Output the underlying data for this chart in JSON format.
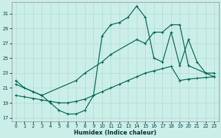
{
  "xlabel": "Humidex (Indice chaleur)",
  "bg_color": "#cceee8",
  "grid_color": "#aaddcc",
  "line_color": "#006655",
  "xlim": [
    -0.5,
    23.5
  ],
  "ylim": [
    16.5,
    32.5
  ],
  "yticks": [
    17,
    19,
    21,
    23,
    25,
    27,
    29,
    31
  ],
  "xticks": [
    0,
    1,
    2,
    3,
    4,
    5,
    6,
    7,
    8,
    9,
    10,
    11,
    12,
    13,
    14,
    15,
    16,
    17,
    18,
    19,
    20,
    21,
    22,
    23
  ],
  "line1_x": [
    0,
    1,
    2,
    3,
    4,
    5,
    6,
    7,
    8,
    9,
    10,
    11,
    12,
    13,
    14,
    15,
    16,
    17,
    18,
    19,
    20,
    21,
    22,
    23
  ],
  "line1_y": [
    22.0,
    21.0,
    20.5,
    20.0,
    19.0,
    18.0,
    17.5,
    17.5,
    18.0,
    20.0,
    28.0,
    29.5,
    29.8,
    30.5,
    32.0,
    30.5,
    25.0,
    24.5,
    28.5,
    24.0,
    27.5,
    24.5,
    23.0,
    23.0
  ],
  "line2_x": [
    0,
    1,
    2,
    3,
    4,
    5,
    6,
    7,
    8,
    9,
    10,
    11,
    12,
    13,
    14,
    15,
    16,
    17,
    18,
    19,
    20,
    21,
    22,
    23
  ],
  "line2_y": [
    20.0,
    19.8,
    19.6,
    19.4,
    19.2,
    19.0,
    19.0,
    19.2,
    19.5,
    20.0,
    20.5,
    21.0,
    21.5,
    22.0,
    22.5,
    23.0,
    23.3,
    23.6,
    23.9,
    22.0,
    22.2,
    22.3,
    22.4,
    22.5
  ],
  "line3_x": [
    0,
    2,
    3,
    7,
    8,
    10,
    11,
    14,
    15,
    16,
    17,
    18,
    19,
    20,
    22,
    23
  ],
  "line3_y": [
    21.5,
    20.5,
    20.0,
    22.0,
    23.0,
    24.5,
    25.5,
    27.5,
    27.0,
    28.5,
    28.5,
    29.5,
    29.5,
    24.0,
    23.0,
    22.5
  ]
}
